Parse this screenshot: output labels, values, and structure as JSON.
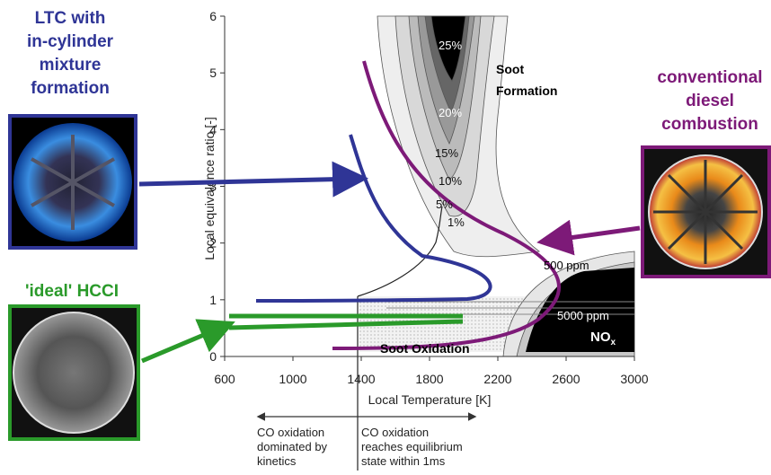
{
  "ltc_label": [
    "LTC with",
    "in-cylinder",
    "mixture",
    "formation"
  ],
  "hcci_label": "'ideal' HCCI",
  "diesel_label": [
    "conventional",
    "diesel",
    "combustion"
  ],
  "x_axis": {
    "title": "Local Temperature [K]",
    "lim": [
      600,
      3000
    ],
    "ticks": [
      600,
      1000,
      1400,
      1800,
      2200,
      2600,
      3000
    ]
  },
  "y_axis": {
    "title": "Local equivalence ratio [-]",
    "lim": [
      0,
      6
    ],
    "ticks": [
      0,
      1,
      2,
      3,
      4,
      5,
      6
    ]
  },
  "soot_contours": [
    "25%",
    "20%",
    "15%",
    "10%",
    "5%",
    "1%"
  ],
  "soot_formation": [
    "Soot",
    "Formation"
  ],
  "nox_contours": [
    "500 ppm",
    "5000 ppm"
  ],
  "nox_label": {
    "main": "NO",
    "sub": "x"
  },
  "soot_oxidation": "Soot Oxidation",
  "co_left": [
    "CO oxidation",
    "dominated by",
    "kinetics"
  ],
  "co_right": [
    "CO oxidation",
    "reaches equilibrium",
    "state within 1ms"
  ]
}
